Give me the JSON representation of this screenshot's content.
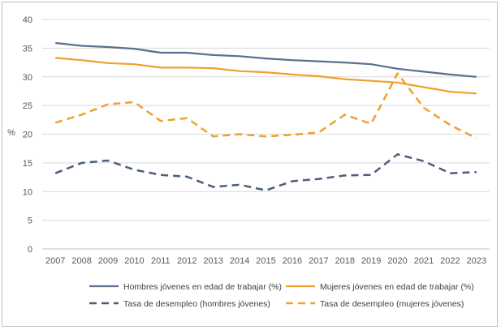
{
  "chart_data": {
    "type": "line",
    "ylabel": "%",
    "ylim": [
      0,
      40
    ],
    "yticks": [
      "0",
      "5",
      "10",
      "15",
      "20",
      "25",
      "30",
      "35",
      "40"
    ],
    "categories": [
      "2007",
      "2008",
      "2009",
      "2010",
      "2011",
      "2012",
      "2013",
      "2014",
      "2015",
      "2016",
      "2017",
      "2018",
      "2019",
      "2020",
      "2021",
      "2022",
      "2023"
    ],
    "grid": "horizontal",
    "legend_position": "bottom",
    "series": [
      {
        "name": "Hombres jóvenes en edad de trabajar (%)",
        "color": "#5a6f8f",
        "style": "solid",
        "values": [
          35.9,
          35.4,
          35.2,
          34.9,
          34.2,
          34.2,
          33.8,
          33.6,
          33.2,
          32.9,
          32.7,
          32.5,
          32.2,
          31.4,
          30.9,
          30.4,
          30.0
        ]
      },
      {
        "name": "Mujeres jóvenes en edad de trabajar (%)",
        "color": "#f0a02c",
        "style": "solid",
        "values": [
          33.3,
          32.9,
          32.4,
          32.2,
          31.6,
          31.6,
          31.5,
          31.0,
          30.8,
          30.4,
          30.1,
          29.6,
          29.3,
          29.0,
          28.2,
          27.4,
          27.1
        ]
      },
      {
        "name": "Tasa de desempleo (hombres jóvenes)",
        "color": "#4c5e7c",
        "style": "dashed",
        "values": [
          13.2,
          15.0,
          15.4,
          13.8,
          12.9,
          12.6,
          10.8,
          11.2,
          10.2,
          11.8,
          12.2,
          12.8,
          12.9,
          16.5,
          15.3,
          13.2,
          13.4
        ]
      },
      {
        "name": "Tasa de desempleo (mujeres jóvenes)",
        "color": "#f0a02c",
        "style": "dashed",
        "values": [
          22.0,
          23.4,
          25.2,
          25.6,
          22.3,
          22.8,
          19.6,
          20.0,
          19.6,
          19.9,
          20.3,
          23.4,
          21.8,
          30.6,
          24.6,
          21.6,
          19.3
        ]
      }
    ]
  }
}
